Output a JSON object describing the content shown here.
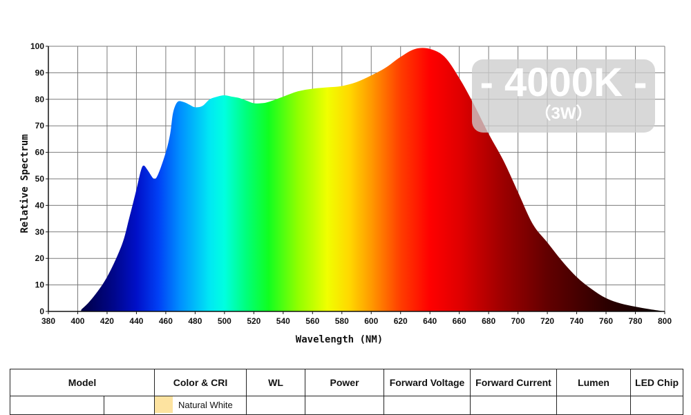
{
  "chart_data": {
    "type": "area",
    "title": "",
    "xlabel": "Wavelength (NM)",
    "ylabel": "Relative Spectrum",
    "xlim": [
      380,
      800
    ],
    "ylim": [
      0,
      100
    ],
    "xticks": [
      380,
      400,
      420,
      440,
      460,
      480,
      500,
      520,
      540,
      560,
      580,
      600,
      620,
      640,
      660,
      680,
      700,
      720,
      740,
      760,
      780,
      800
    ],
    "yticks": [
      0,
      10,
      20,
      30,
      40,
      50,
      60,
      70,
      80,
      90,
      100
    ],
    "grid": true,
    "series": [
      {
        "x": [
          380,
          400,
          403,
          410,
          420,
          430,
          435,
          440,
          443,
          445,
          448,
          452,
          455,
          460,
          463,
          465,
          468,
          472,
          476,
          480,
          485,
          490,
          495,
          500,
          505,
          510,
          515,
          520,
          525,
          530,
          540,
          550,
          560,
          570,
          580,
          590,
          600,
          610,
          620,
          630,
          640,
          650,
          660,
          670,
          680,
          690,
          700,
          710,
          720,
          730,
          740,
          750,
          760,
          770,
          780,
          790,
          800
        ],
        "y": [
          0,
          0,
          1,
          5,
          13,
          25,
          35,
          46,
          53,
          55,
          53,
          50,
          52,
          60,
          67,
          75,
          79,
          79,
          78,
          77,
          77.5,
          80,
          81,
          81.5,
          81,
          80.5,
          79.5,
          78.5,
          78.5,
          79,
          81,
          83,
          84,
          84.5,
          85,
          86.5,
          89,
          92,
          96,
          99,
          99,
          96,
          88,
          78,
          67,
          57,
          45,
          33,
          26,
          19,
          13,
          8.5,
          5,
          3,
          1.8,
          0.8,
          0
        ]
      }
    ],
    "gradient_stops": [
      {
        "nm": 380,
        "color": "#000033"
      },
      {
        "nm": 405,
        "color": "#00004d"
      },
      {
        "nm": 425,
        "color": "#00068c"
      },
      {
        "nm": 440,
        "color": "#0010c8"
      },
      {
        "nm": 455,
        "color": "#0040f5"
      },
      {
        "nm": 470,
        "color": "#0090ff"
      },
      {
        "nm": 490,
        "color": "#00e8f4"
      },
      {
        "nm": 500,
        "color": "#00ffe0"
      },
      {
        "nm": 515,
        "color": "#00ff7a"
      },
      {
        "nm": 530,
        "color": "#10ff20"
      },
      {
        "nm": 550,
        "color": "#90ff00"
      },
      {
        "nm": 570,
        "color": "#f0ff00"
      },
      {
        "nm": 585,
        "color": "#ffd800"
      },
      {
        "nm": 600,
        "color": "#ff9a00"
      },
      {
        "nm": 620,
        "color": "#ff3d00"
      },
      {
        "nm": 640,
        "color": "#ff0000"
      },
      {
        "nm": 660,
        "color": "#e00000"
      },
      {
        "nm": 690,
        "color": "#9c0000"
      },
      {
        "nm": 720,
        "color": "#620000"
      },
      {
        "nm": 760,
        "color": "#2c0000"
      },
      {
        "nm": 800,
        "color": "#080000"
      }
    ]
  },
  "badge": {
    "main": "- 4000K -",
    "sub": "（3W）"
  },
  "table": {
    "headers": [
      "Model",
      "Color & CRI",
      "WL",
      "Power",
      "Forward Voltage",
      "Forward Current",
      "Lumen",
      "LED Chip"
    ],
    "row1_color": "Natural White"
  },
  "colors": {
    "grid": "#7a7a7a",
    "swatch": "#fde3a0",
    "badge_bg": "#cdcdcd"
  }
}
